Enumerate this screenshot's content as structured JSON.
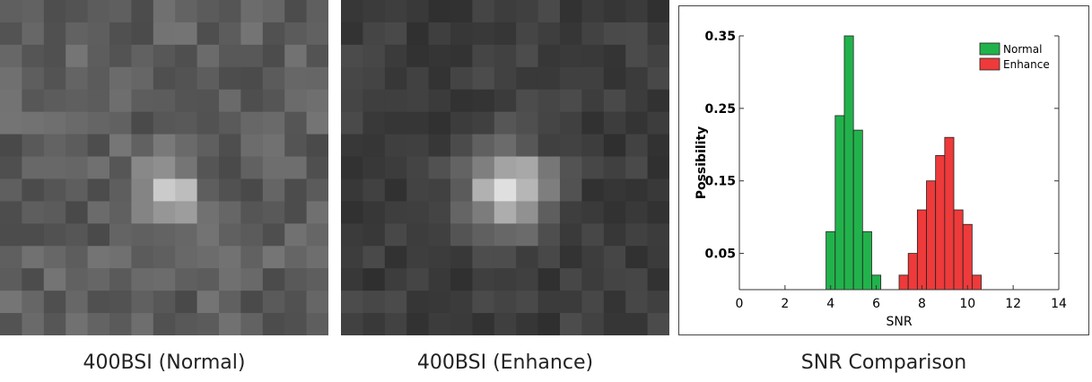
{
  "captions": [
    "400BSI (Normal)",
    "400BSI (Enhance)",
    "SNR Comparison"
  ],
  "chart_data": {
    "type": "histogram",
    "xlabel": "SNR",
    "ylabel": "Possibility",
    "xlim": [
      0,
      14
    ],
    "xticks": [
      0,
      2,
      4,
      6,
      8,
      10,
      12,
      14
    ],
    "ylim": [
      0,
      0.35
    ],
    "yticks": [
      0.05,
      0.15,
      0.25,
      0.35
    ],
    "legend": "top-right",
    "series": [
      {
        "name": "Normal",
        "color": "#22b24c",
        "bins": [
          3.8,
          4.2,
          4.6,
          5.0,
          5.4,
          5.8,
          6.2
        ],
        "values": [
          0.08,
          0.24,
          0.35,
          0.22,
          0.08,
          0.02
        ]
      },
      {
        "name": "Enhance",
        "color": "#ee3a3a",
        "bins": [
          7.0,
          7.4,
          7.8,
          8.2,
          8.6,
          9.0,
          9.4,
          9.8,
          10.2,
          10.6
        ],
        "values": [
          0.02,
          0.05,
          0.11,
          0.15,
          0.185,
          0.21,
          0.11,
          0.09,
          0.02
        ]
      }
    ]
  }
}
